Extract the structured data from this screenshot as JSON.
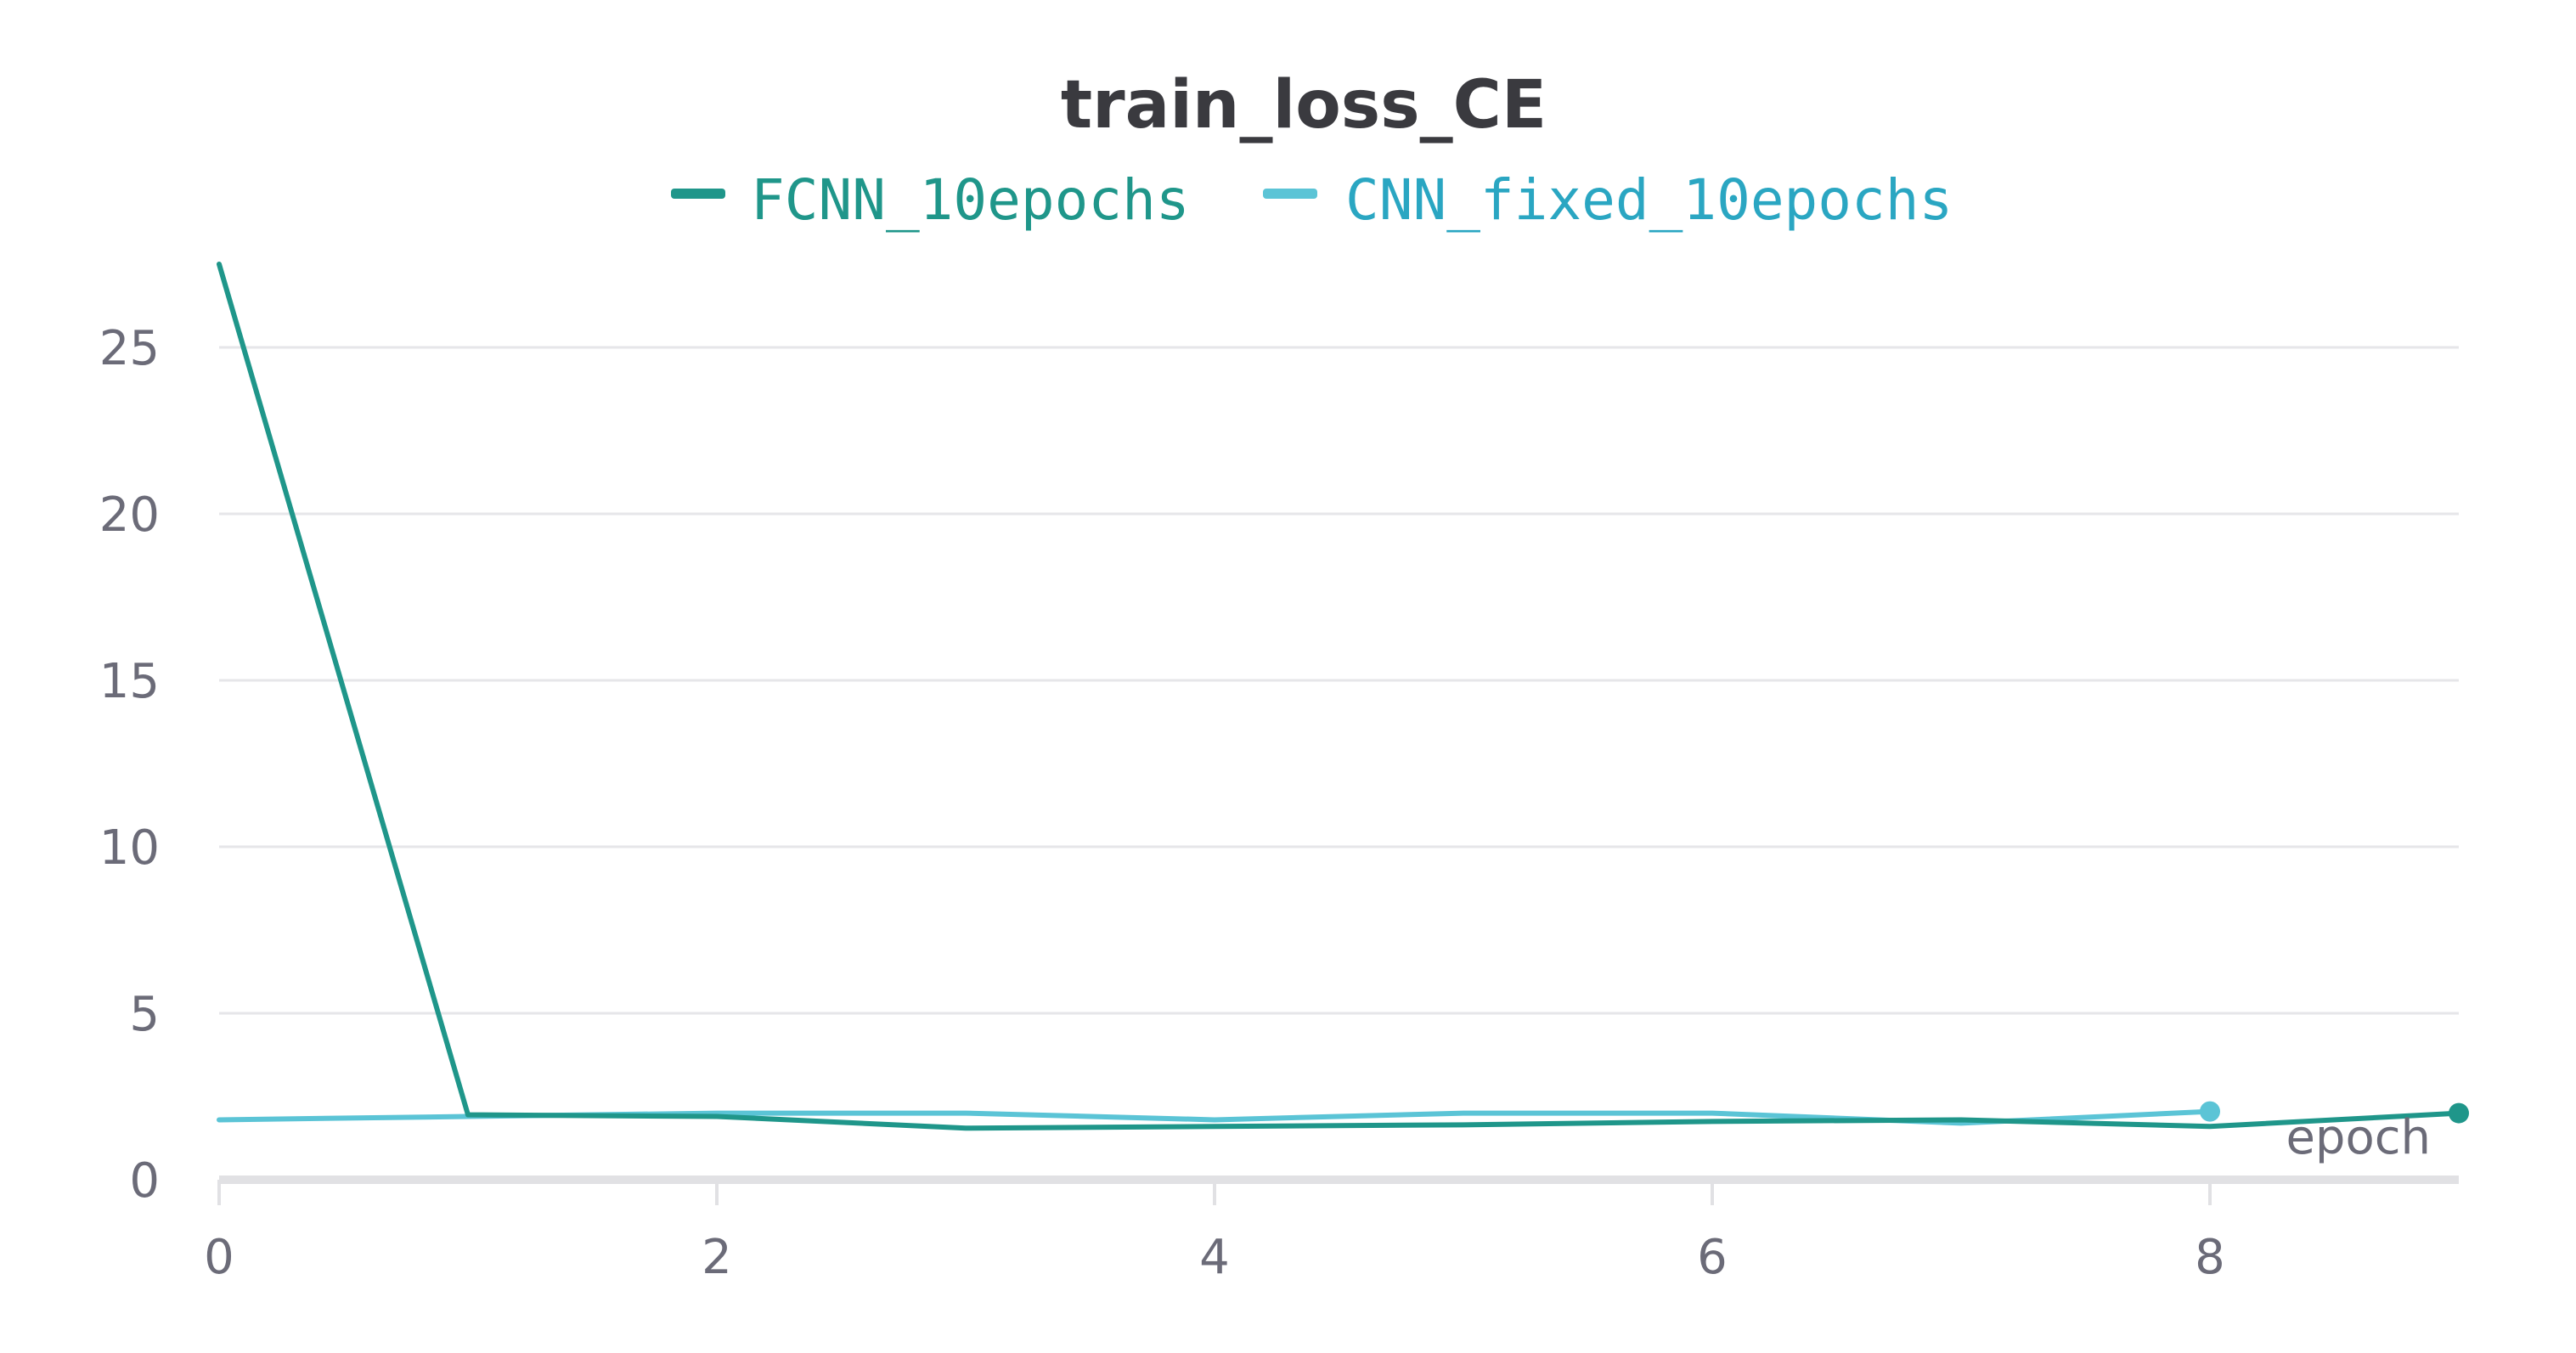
{
  "chart_data": {
    "type": "line",
    "title": "train_loss_CE",
    "xlabel": "epoch",
    "ylabel": "",
    "xlim": [
      0,
      9
    ],
    "ylim": [
      0,
      27.5
    ],
    "x_ticks": [
      "0",
      "2",
      "4",
      "6",
      "8"
    ],
    "y_ticks": [
      "0",
      "5",
      "10",
      "15",
      "20",
      "25"
    ],
    "grid": true,
    "legend_position": "top-center",
    "series": [
      {
        "name": "FCNN_10epochs",
        "color": "#1f968a",
        "x": [
          0,
          1,
          2,
          3,
          4,
          5,
          6,
          7,
          8,
          9
        ],
        "values": [
          27.5,
          1.95,
          1.9,
          1.55,
          1.6,
          1.65,
          1.75,
          1.8,
          1.6,
          2.0
        ]
      },
      {
        "name": "CNN_fixed_10epochs",
        "color": "#5bc4d6",
        "x": [
          0,
          1,
          2,
          3,
          4,
          5,
          6,
          7,
          8
        ],
        "values": [
          1.8,
          1.9,
          2.0,
          2.0,
          1.8,
          2.0,
          2.0,
          1.7,
          2.05
        ]
      }
    ]
  }
}
